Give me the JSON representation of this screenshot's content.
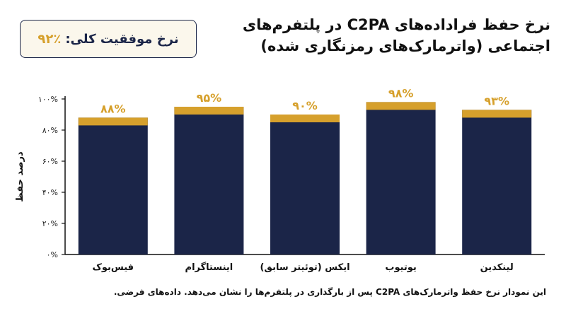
{
  "header": {
    "title": "نرخ حفظ فراداده‌های C2PA در پلتفرم‌های اجتماعی (واترمارک‌های رمزنگاری شده)",
    "badge_label": "نرخ موفقیت کلی:",
    "badge_value": "۹۲٪"
  },
  "caption": "این نمودار نرخ حفظ واترمارک‌های C2PA پس از بارگذاری در پلتفرم‌ها را نشان می‌دهد. داده‌های فرضی.",
  "colors": {
    "bar": "#1b2548",
    "bar_top": "#d6a02c",
    "value_label": "#d6a02c",
    "axis": "#111111"
  },
  "chart_data": {
    "type": "bar",
    "categories": [
      "فیس‌بوک",
      "اینستاگرام",
      "ایکس (توئیتر سابق)",
      "یوتیوب",
      "لینکدین"
    ],
    "values": [
      88,
      95,
      90,
      98,
      93
    ],
    "value_labels": [
      "۸۸%",
      "۹۵%",
      "۹۰%",
      "۹۸%",
      "۹۳%"
    ],
    "ylabel": "درصد حفظ",
    "ylim": [
      0,
      100
    ],
    "yticks": [
      0,
      20,
      40,
      60,
      80,
      100
    ],
    "ytick_labels": [
      "۰%",
      "۲۰%",
      "۴۰%",
      "۶۰%",
      "۸۰%",
      "۱۰۰%"
    ],
    "grid": false,
    "legend": "none"
  }
}
